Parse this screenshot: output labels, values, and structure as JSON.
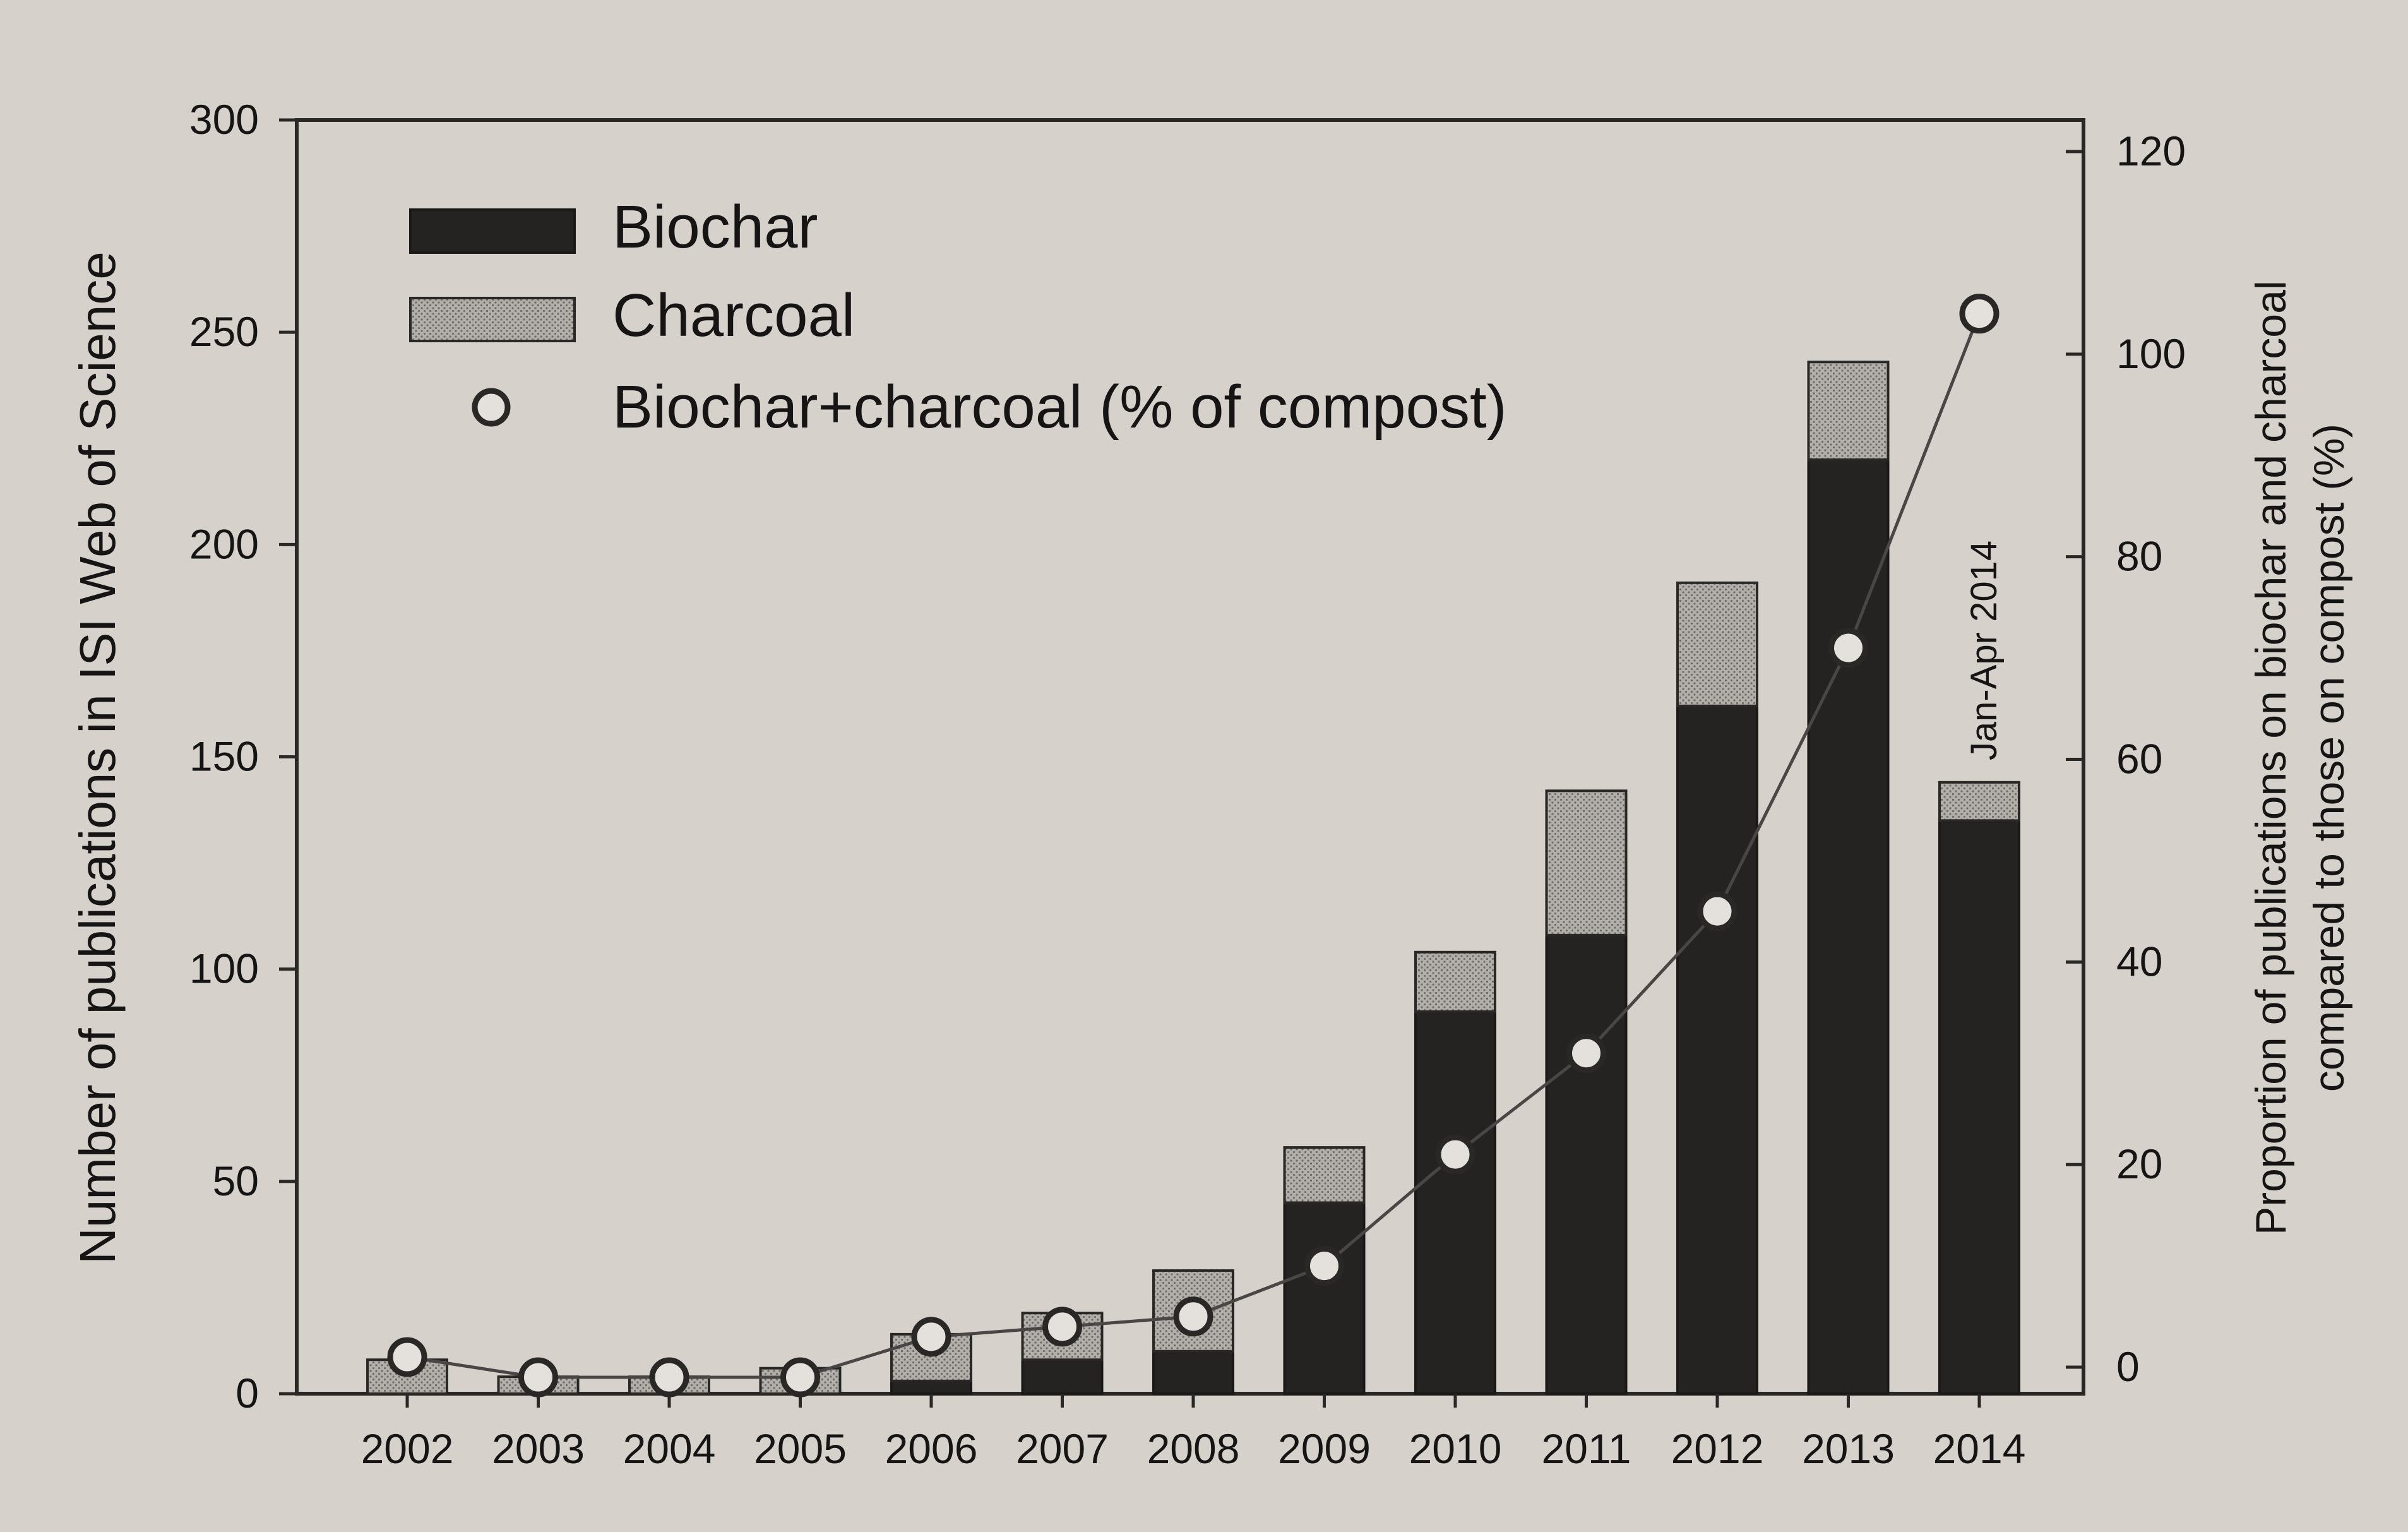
{
  "chart_data": {
    "type": "bar",
    "stacked": true,
    "categories": [
      "2002",
      "2003",
      "2004",
      "2005",
      "2006",
      "2007",
      "2008",
      "2009",
      "2010",
      "2011",
      "2012",
      "2013",
      "2014"
    ],
    "series": [
      {
        "name": "Biochar",
        "kind": "bar",
        "axis": "left",
        "color": "#252222",
        "values": [
          0,
          0,
          0,
          0,
          3,
          8,
          10,
          45,
          90,
          108,
          162,
          220,
          135
        ]
      },
      {
        "name": "Charcoal",
        "kind": "bar",
        "axis": "left",
        "color": "#a9a5a1",
        "pattern": "stipple",
        "values": [
          8,
          4,
          4,
          6,
          11,
          11,
          19,
          13,
          14,
          34,
          29,
          23,
          9
        ]
      },
      {
        "name": "Biochar+charcoal (% of compost)",
        "kind": "line",
        "axis": "right",
        "marker": "open-circle",
        "color": "#4a4646",
        "values": [
          1,
          -1,
          -1,
          -1,
          3,
          4,
          5,
          10,
          21,
          31,
          45,
          71,
          104
        ]
      }
    ],
    "left_axis": {
      "label": "Number of publications in ISI Web of Science",
      "range": [
        0,
        300
      ],
      "ticks": [
        "0",
        "50",
        "100",
        "150",
        "200",
        "250",
        "300"
      ]
    },
    "right_axis": {
      "label_line1": "Proportion of publications on biochar and charcoal",
      "label_line2": "compared to those on compost (%)",
      "range": [
        0,
        120
      ],
      "ticks": [
        "0",
        "20",
        "40",
        "60",
        "80",
        "100",
        "120"
      ]
    },
    "annotation": {
      "text": "Jan-Apr 2014",
      "category": "2014"
    },
    "legend": {
      "position": "top-left",
      "entries": [
        "Biochar",
        "Charcoal",
        "Biochar+charcoal (% of compost)"
      ]
    },
    "grid": false
  }
}
